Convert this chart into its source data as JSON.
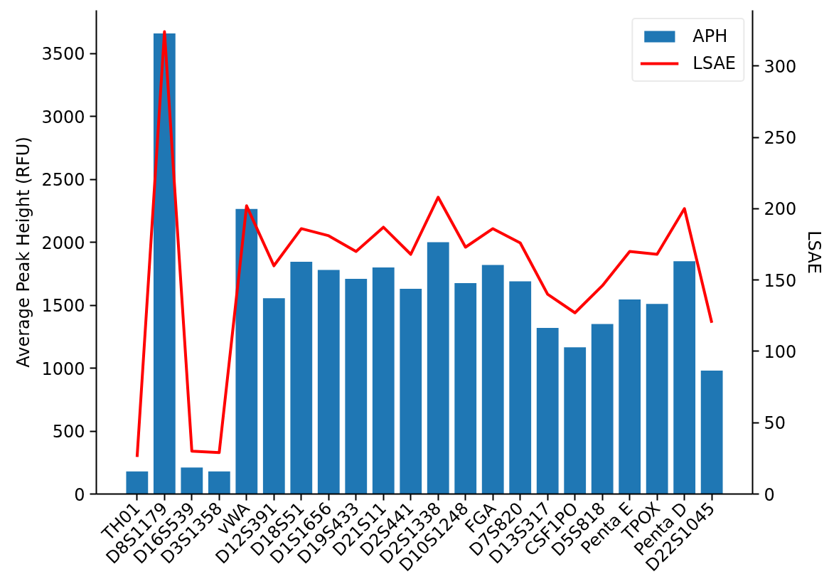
{
  "chart_data": {
    "type": "bar",
    "categories": [
      "TH01",
      "D8S1179",
      "D16S539",
      "D3S1358",
      "vWA",
      "D12S391",
      "D18S51",
      "D1S1656",
      "D19S433",
      "D21S11",
      "D2S441",
      "D2S1338",
      "D10S1248",
      "FGA",
      "D7S820",
      "D13S317",
      "CSF1PO",
      "D5S818",
      "Penta E",
      "TPOX",
      "Penta D",
      "D22S1045"
    ],
    "series": [
      {
        "name": "APH",
        "color": "#1f77b4",
        "values": [
          180,
          3660,
          210,
          180,
          2265,
          1555,
          1845,
          1780,
          1710,
          1800,
          1630,
          2000,
          1675,
          1820,
          1690,
          1320,
          1165,
          1350,
          1545,
          1510,
          1850,
          980
        ]
      },
      {
        "name": "LSAE",
        "type": "line",
        "axis": "y2",
        "color": "#ff0000",
        "values": [
          26,
          324,
          30,
          29,
          202,
          160,
          186,
          181,
          170,
          187,
          168,
          208,
          173,
          186,
          176,
          140,
          127,
          146,
          170,
          168,
          200,
          120
        ]
      }
    ],
    "ylabel": "Average Peak Height (RFU)",
    "y2label": "LSAE",
    "ylim": [
      0,
      3843
    ],
    "yticks": [
      0,
      500,
      1000,
      1500,
      2000,
      2500,
      3000,
      3500
    ],
    "y2lim": [
      0,
      339
    ],
    "y2ticks": [
      0,
      50,
      100,
      150,
      200,
      250,
      300
    ],
    "legend": "top right",
    "grid": false
  }
}
